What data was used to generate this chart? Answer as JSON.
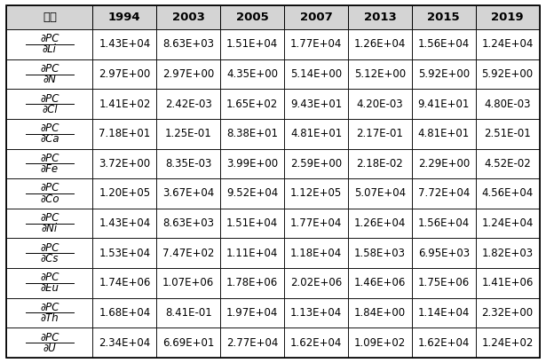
{
  "col_headers": [
    "구분",
    "1994",
    "2003",
    "2005",
    "2007",
    "2013",
    "2015",
    "2019"
  ],
  "row_labels_top": [
    "∂PC",
    "∂PC",
    "∂PC",
    "∂PC",
    "∂PC",
    "∂PC",
    "∂PC",
    "∂PC",
    "∂PC",
    "∂PC",
    "∂PC"
  ],
  "row_labels_bot": [
    "∂Li",
    "∂N",
    "∂Cl",
    "∂Ca",
    "∂Fe",
    "∂Co",
    "∂Ni",
    "∂Cs",
    "∂Eu",
    "∂Th",
    "∂U"
  ],
  "data": [
    [
      "1.43E+04",
      "8.63E+03",
      "1.51E+04",
      "1.77E+04",
      "1.26E+04",
      "1.56E+04",
      "1.24E+04"
    ],
    [
      "2.97E+00",
      "2.97E+00",
      "4.35E+00",
      "5.14E+00",
      "5.12E+00",
      "5.92E+00",
      "5.92E+00"
    ],
    [
      "1.41E+02",
      "2.42E-03",
      "1.65E+02",
      "9.43E+01",
      "4.20E-03",
      "9.41E+01",
      "4.80E-03"
    ],
    [
      "7.18E+01",
      "1.25E-01",
      "8.38E+01",
      "4.81E+01",
      "2.17E-01",
      "4.81E+01",
      "2.51E-01"
    ],
    [
      "3.72E+00",
      "8.35E-03",
      "3.99E+00",
      "2.59E+00",
      "2.18E-02",
      "2.29E+00",
      "4.52E-02"
    ],
    [
      "1.20E+05",
      "3.67E+04",
      "9.52E+04",
      "1.12E+05",
      "5.07E+04",
      "7.72E+04",
      "4.56E+04"
    ],
    [
      "1.43E+04",
      "8.63E+03",
      "1.51E+04",
      "1.77E+04",
      "1.26E+04",
      "1.56E+04",
      "1.24E+04"
    ],
    [
      "1.53E+04",
      "7.47E+02",
      "1.11E+04",
      "1.18E+04",
      "1.58E+03",
      "6.95E+03",
      "1.82E+03"
    ],
    [
      "1.74E+06",
      "1.07E+06",
      "1.78E+06",
      "2.02E+06",
      "1.46E+06",
      "1.75E+06",
      "1.41E+06"
    ],
    [
      "1.68E+04",
      "8.41E-01",
      "1.97E+04",
      "1.13E+04",
      "1.84E+00",
      "1.14E+04",
      "2.32E+00"
    ],
    [
      "2.34E+04",
      "6.69E+01",
      "2.77E+04",
      "1.62E+04",
      "1.09E+02",
      "1.62E+04",
      "1.24E+02"
    ]
  ],
  "header_bg": "#d4d4d4",
  "cell_bg": "#ffffff",
  "border_color": "#000000",
  "text_color": "#000000",
  "header_fontsize": 9.5,
  "cell_fontsize": 8.5,
  "label_fontsize": 8.5,
  "col_widths_rel": [
    1.35,
    1.0,
    1.0,
    1.0,
    1.0,
    1.0,
    1.0,
    1.0
  ]
}
